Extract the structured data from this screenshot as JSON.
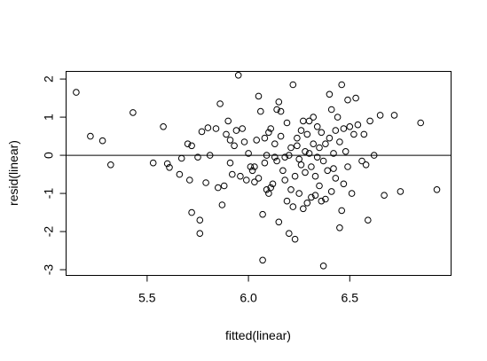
{
  "chart_data": {
    "type": "scatter",
    "title": "",
    "xlabel": "fitted(linear)",
    "ylabel": "resid(linear)",
    "xlim": [
      5.1,
      7.0
    ],
    "ylim": [
      -3.15,
      2.2
    ],
    "x_ticks": [
      5.5,
      6.0,
      6.5
    ],
    "x_tick_labels": [
      "5.5",
      "6.0",
      "6.5"
    ],
    "y_ticks": [
      -3,
      -2,
      -1,
      0,
      1,
      2
    ],
    "y_tick_labels": [
      "-3",
      "-2",
      "-1",
      "0",
      "1",
      "2"
    ],
    "reference_line_y": 0,
    "point_style": "open circle",
    "point_color": "#000000",
    "grid": false,
    "points": [
      [
        5.15,
        1.65
      ],
      [
        5.22,
        0.5
      ],
      [
        5.28,
        0.38
      ],
      [
        5.32,
        -0.25
      ],
      [
        5.43,
        1.12
      ],
      [
        5.53,
        -0.2
      ],
      [
        5.58,
        0.75
      ],
      [
        5.6,
        -0.22
      ],
      [
        5.61,
        -0.32
      ],
      [
        5.66,
        -0.5
      ],
      [
        5.67,
        -0.08
      ],
      [
        5.7,
        0.3
      ],
      [
        5.71,
        -0.65
      ],
      [
        5.72,
        0.25
      ],
      [
        5.72,
        -1.5
      ],
      [
        5.75,
        -0.05
      ],
      [
        5.76,
        -1.7
      ],
      [
        5.76,
        -2.05
      ],
      [
        5.77,
        0.62
      ],
      [
        5.79,
        -0.72
      ],
      [
        5.8,
        0.72
      ],
      [
        5.81,
        0.0
      ],
      [
        5.84,
        0.7
      ],
      [
        5.85,
        -0.85
      ],
      [
        5.86,
        1.35
      ],
      [
        5.87,
        -1.3
      ],
      [
        5.88,
        -0.8
      ],
      [
        5.89,
        0.55
      ],
      [
        5.9,
        0.9
      ],
      [
        5.91,
        0.4
      ],
      [
        5.91,
        -0.2
      ],
      [
        5.92,
        -0.5
      ],
      [
        5.93,
        0.25
      ],
      [
        5.94,
        0.65
      ],
      [
        5.95,
        2.1
      ],
      [
        5.96,
        -0.55
      ],
      [
        5.97,
        0.7
      ],
      [
        5.98,
        0.35
      ],
      [
        5.99,
        -0.65
      ],
      [
        6.0,
        0.05
      ],
      [
        6.01,
        -0.3
      ],
      [
        6.02,
        -0.4
      ],
      [
        6.03,
        -0.3
      ],
      [
        6.03,
        -0.7
      ],
      [
        6.04,
        0.4
      ],
      [
        6.05,
        1.55
      ],
      [
        6.05,
        -0.6
      ],
      [
        6.06,
        1.15
      ],
      [
        6.07,
        -1.55
      ],
      [
        6.07,
        -2.75
      ],
      [
        6.08,
        0.45
      ],
      [
        6.08,
        -0.2
      ],
      [
        6.09,
        0.0
      ],
      [
        6.09,
        -0.9
      ],
      [
        6.1,
        0.6
      ],
      [
        6.1,
        -1.0
      ],
      [
        6.11,
        -0.85
      ],
      [
        6.11,
        0.7
      ],
      [
        6.12,
        -0.75
      ],
      [
        6.13,
        -0.05
      ],
      [
        6.13,
        0.3
      ],
      [
        6.14,
        1.2
      ],
      [
        6.14,
        -0.15
      ],
      [
        6.15,
        1.4
      ],
      [
        6.15,
        -1.75
      ],
      [
        6.16,
        0.5
      ],
      [
        6.16,
        1.15
      ],
      [
        6.17,
        -0.4
      ],
      [
        6.18,
        -0.05
      ],
      [
        6.18,
        -0.65
      ],
      [
        6.19,
        -1.2
      ],
      [
        6.19,
        0.85
      ],
      [
        6.2,
        -2.05
      ],
      [
        6.2,
        0.0
      ],
      [
        6.21,
        0.2
      ],
      [
        6.21,
        -0.9
      ],
      [
        6.22,
        1.85
      ],
      [
        6.22,
        -1.35
      ],
      [
        6.23,
        -0.55
      ],
      [
        6.23,
        -2.2
      ],
      [
        6.24,
        0.45
      ],
      [
        6.24,
        0.25
      ],
      [
        6.25,
        -0.1
      ],
      [
        6.25,
        -1.0
      ],
      [
        6.26,
        0.65
      ],
      [
        6.26,
        -0.25
      ],
      [
        6.27,
        0.9
      ],
      [
        6.27,
        -1.4
      ],
      [
        6.28,
        0.1
      ],
      [
        6.28,
        -0.45
      ],
      [
        6.29,
        0.55
      ],
      [
        6.29,
        -1.25
      ],
      [
        6.3,
        0.9
      ],
      [
        6.3,
        0.05
      ],
      [
        6.31,
        -0.3
      ],
      [
        6.31,
        -1.1
      ],
      [
        6.32,
        0.3
      ],
      [
        6.32,
        1.0
      ],
      [
        6.33,
        -0.55
      ],
      [
        6.33,
        -1.05
      ],
      [
        6.34,
        0.75
      ],
      [
        6.34,
        -0.05
      ],
      [
        6.35,
        -0.8
      ],
      [
        6.35,
        0.2
      ],
      [
        6.36,
        -1.2
      ],
      [
        6.36,
        0.6
      ],
      [
        6.37,
        -2.9
      ],
      [
        6.37,
        -0.15
      ],
      [
        6.38,
        0.3
      ],
      [
        6.38,
        -1.15
      ],
      [
        6.39,
        -0.4
      ],
      [
        6.4,
        0.45
      ],
      [
        6.4,
        1.6
      ],
      [
        6.41,
        1.2
      ],
      [
        6.41,
        -0.95
      ],
      [
        6.42,
        0.05
      ],
      [
        6.42,
        -0.35
      ],
      [
        6.43,
        0.65
      ],
      [
        6.43,
        -0.6
      ],
      [
        6.44,
        1.0
      ],
      [
        6.45,
        -1.9
      ],
      [
        6.45,
        0.35
      ],
      [
        6.46,
        -1.45
      ],
      [
        6.46,
        1.85
      ],
      [
        6.47,
        0.7
      ],
      [
        6.47,
        -0.75
      ],
      [
        6.48,
        0.1
      ],
      [
        6.49,
        1.45
      ],
      [
        6.49,
        -0.3
      ],
      [
        6.5,
        0.75
      ],
      [
        6.51,
        -1.0
      ],
      [
        6.52,
        0.55
      ],
      [
        6.53,
        1.5
      ],
      [
        6.54,
        0.8
      ],
      [
        6.56,
        -0.15
      ],
      [
        6.57,
        0.55
      ],
      [
        6.58,
        -0.25
      ],
      [
        6.59,
        -1.7
      ],
      [
        6.6,
        0.9
      ],
      [
        6.62,
        0.0
      ],
      [
        6.65,
        1.05
      ],
      [
        6.67,
        -1.05
      ],
      [
        6.72,
        1.05
      ],
      [
        6.75,
        -0.95
      ],
      [
        6.85,
        0.85
      ],
      [
        6.93,
        -0.9
      ]
    ]
  }
}
